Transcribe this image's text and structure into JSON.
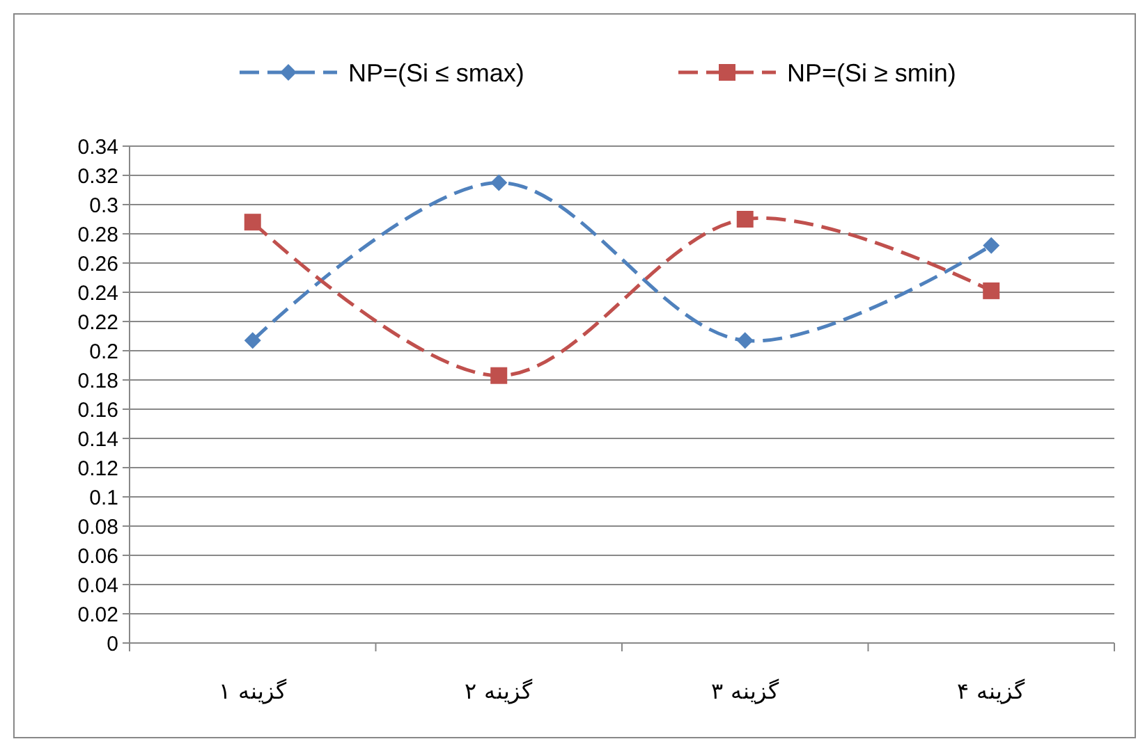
{
  "chart_data": {
    "type": "line",
    "categories": [
      "گزینه ۱",
      "گزینه ۲",
      "گزینه ۳",
      "گزینه ۴"
    ],
    "series": [
      {
        "name": "NP=(Si ≤ smax)",
        "color": "#4f81bd",
        "marker": "diamond",
        "values": [
          0.207,
          0.315,
          0.207,
          0.272
        ]
      },
      {
        "name": "NP=(Si ≥ smin)",
        "color": "#c0504d",
        "marker": "square",
        "values": [
          0.288,
          0.183,
          0.29,
          0.241
        ]
      }
    ],
    "ylim": [
      0,
      0.34
    ],
    "yticks": [
      0,
      0.02,
      0.04,
      0.06,
      0.08,
      0.1,
      0.12,
      0.14,
      0.16,
      0.18,
      0.2,
      0.22,
      0.24,
      0.26,
      0.28,
      0.3,
      0.32,
      0.34
    ],
    "grid": "y",
    "legend": "top",
    "line_style": "dashed"
  }
}
